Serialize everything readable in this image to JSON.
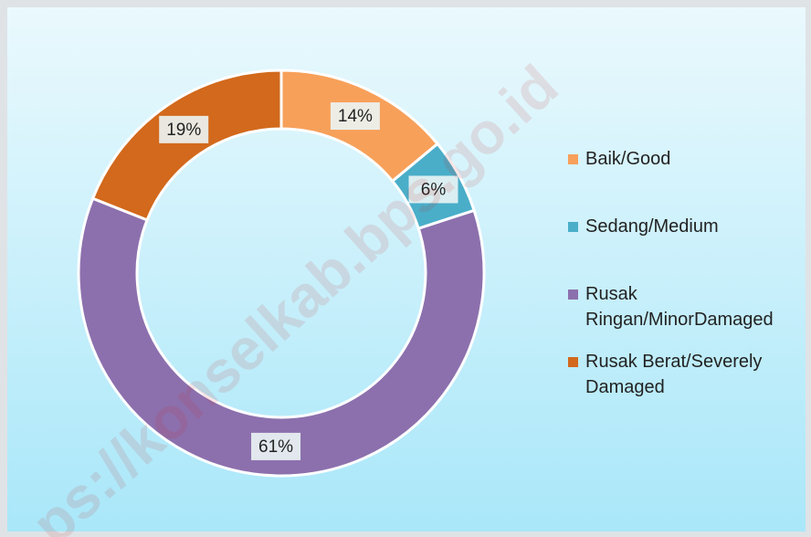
{
  "chart_data": {
    "type": "pie",
    "categories": [
      "Baik/Good",
      "Sedang/Medium",
      "Rusak Ringan/MinorDamaged",
      "Rusak Berat/Severely Damaged"
    ],
    "values": [
      14,
      6,
      61,
      19
    ],
    "value_labels": [
      "14%",
      "6%",
      "61%",
      "19%"
    ],
    "colors": [
      "#f7a05a",
      "#4aaec9",
      "#8c70ad",
      "#d2691c"
    ],
    "donut": true,
    "legend": "right",
    "watermark": "ps://konselkab.bps.go.id"
  }
}
